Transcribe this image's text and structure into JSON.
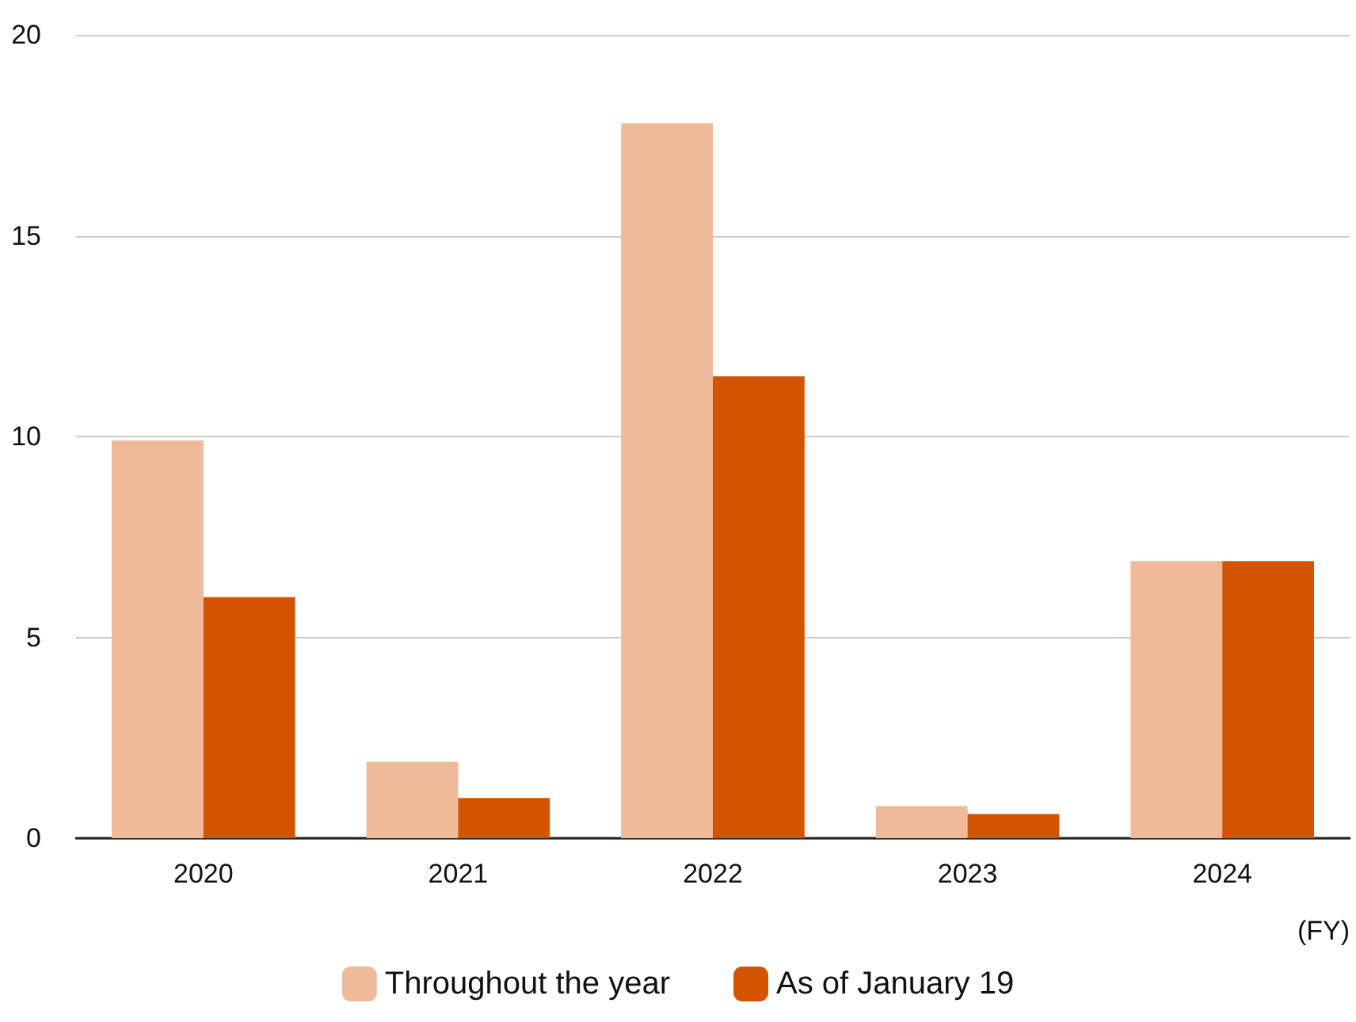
{
  "chart_data": {
    "type": "bar",
    "categories": [
      "2020",
      "2021",
      "2022",
      "2023",
      "2024"
    ],
    "series": [
      {
        "name": "Throughout the year",
        "color": "#efba99",
        "values": [
          9.9,
          1.9,
          17.8,
          0.8,
          6.9
        ]
      },
      {
        "name": "As of January 19",
        "color": "#d35400",
        "values": [
          6.0,
          1.0,
          11.5,
          0.6,
          6.9
        ]
      }
    ],
    "xlabel": "(FY)",
    "ylim": [
      0,
      20
    ],
    "yticks": [
      0,
      5,
      10,
      15,
      20
    ],
    "grid": "y",
    "legend": "bottom"
  }
}
